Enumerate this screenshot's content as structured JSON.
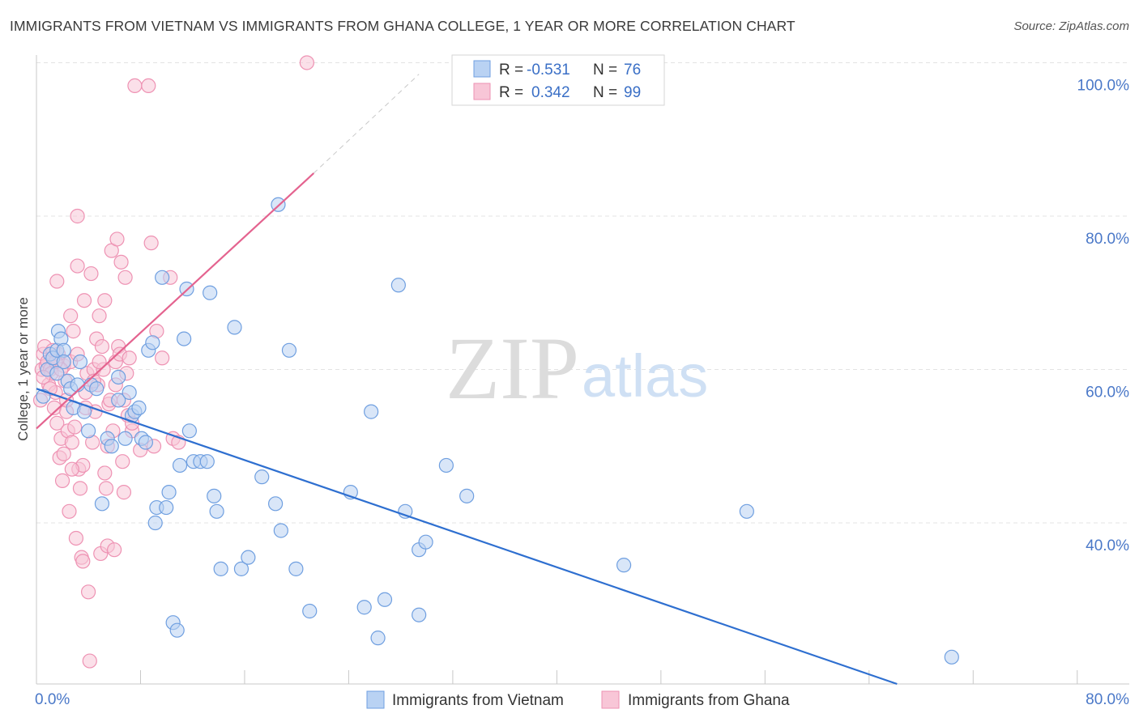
{
  "title": "IMMIGRANTS FROM VIETNAM VS IMMIGRANTS FROM GHANA COLLEGE, 1 YEAR OR MORE CORRELATION CHART",
  "source": "Source: ZipAtlas.com",
  "watermark": {
    "zip": "ZIP",
    "atlas": "atlas"
  },
  "legend": {
    "r_label": "R =",
    "n_label": "N =",
    "rows": [
      {
        "series": "Immigrants from Vietnam",
        "r": "-0.531",
        "n": "76"
      },
      {
        "series": "Immigrants from Ghana",
        "r": "0.342",
        "n": "99"
      }
    ]
  },
  "chart_data": {
    "type": "scatter",
    "title": "IMMIGRANTS FROM VIETNAM VS IMMIGRANTS FROM GHANA COLLEGE, 1 YEAR OR MORE CORRELATION CHART",
    "xlabel": "",
    "ylabel": "College, 1 year or more",
    "xlim": [
      0,
      80
    ],
    "ylim": [
      19,
      101
    ],
    "x_tick_labels": [
      "0.0%",
      "80.0%"
    ],
    "y_ticks": [
      {
        "value": 100,
        "label": "100.0%"
      },
      {
        "value": 80,
        "label": "80.0%"
      },
      {
        "value": 60,
        "label": "60.0%"
      },
      {
        "value": 40,
        "label": "40.0%"
      }
    ],
    "grid": true,
    "series": [
      {
        "name": "Immigrants from Vietnam",
        "color": "#6f9fe0",
        "fill": "#b9d2f3",
        "trend": {
          "x": [
            0,
            63
          ],
          "y": [
            57.5,
            19
          ],
          "color": "#2e6fd0"
        },
        "points": [
          [
            0.5,
            56.5
          ],
          [
            0.8,
            60.0
          ],
          [
            1.0,
            62.0
          ],
          [
            1.2,
            61.5
          ],
          [
            1.5,
            62.5
          ],
          [
            1.6,
            65.0
          ],
          [
            1.8,
            64.0
          ],
          [
            2.0,
            62.5
          ],
          [
            2.3,
            58.5
          ],
          [
            2.5,
            57.5
          ],
          [
            2.7,
            55.0
          ],
          [
            3.0,
            58.0
          ],
          [
            3.2,
            61.0
          ],
          [
            3.5,
            54.5
          ],
          [
            3.8,
            52.0
          ],
          [
            4.0,
            58.0
          ],
          [
            4.4,
            57.5
          ],
          [
            4.8,
            42.5
          ],
          [
            5.2,
            51.0
          ],
          [
            5.5,
            50.0
          ],
          [
            6.0,
            56.0
          ],
          [
            6.0,
            59.0
          ],
          [
            6.5,
            51.0
          ],
          [
            6.8,
            57.0
          ],
          [
            7.0,
            54.0
          ],
          [
            7.2,
            54.5
          ],
          [
            7.5,
            55.0
          ],
          [
            7.7,
            51.0
          ],
          [
            8.0,
            50.5
          ],
          [
            8.2,
            62.5
          ],
          [
            8.5,
            63.5
          ],
          [
            8.7,
            40.0
          ],
          [
            8.8,
            42.0
          ],
          [
            9.2,
            72.0
          ],
          [
            9.5,
            42.0
          ],
          [
            9.7,
            44.0
          ],
          [
            10.0,
            27.0
          ],
          [
            10.3,
            26.0
          ],
          [
            10.5,
            47.5
          ],
          [
            10.8,
            64.0
          ],
          [
            11.0,
            70.5
          ],
          [
            11.2,
            52.0
          ],
          [
            11.5,
            48.0
          ],
          [
            12.0,
            48.0
          ],
          [
            12.5,
            48.0
          ],
          [
            12.7,
            70.0
          ],
          [
            13.0,
            43.5
          ],
          [
            13.2,
            41.5
          ],
          [
            13.5,
            34.0
          ],
          [
            14.5,
            65.5
          ],
          [
            15.0,
            34.0
          ],
          [
            15.5,
            35.5
          ],
          [
            16.5,
            46.0
          ],
          [
            17.5,
            42.5
          ],
          [
            17.7,
            81.5
          ],
          [
            17.9,
            39.0
          ],
          [
            18.5,
            62.5
          ],
          [
            19.0,
            34.0
          ],
          [
            20.0,
            28.5
          ],
          [
            23.0,
            44.0
          ],
          [
            24.0,
            29.0
          ],
          [
            24.5,
            54.5
          ],
          [
            25.0,
            25.0
          ],
          [
            25.5,
            30.0
          ],
          [
            26.5,
            71.0
          ],
          [
            27.0,
            41.5
          ],
          [
            28.0,
            36.5
          ],
          [
            28.0,
            28.0
          ],
          [
            28.5,
            37.5
          ],
          [
            30.0,
            47.5
          ],
          [
            31.5,
            43.5
          ],
          [
            43.0,
            34.5
          ],
          [
            52.0,
            41.5
          ],
          [
            67.0,
            22.5
          ],
          [
            2.0,
            61.0
          ],
          [
            1.5,
            59.5
          ]
        ]
      },
      {
        "name": "Immigrants from Ghana",
        "color": "#ee92b3",
        "fill": "#f8c6d7",
        "trend": {
          "x": [
            0,
            20.3
          ],
          "y": [
            52.3,
            85.6
          ],
          "dashed_to": [
            28,
            98.5
          ],
          "color": "#e4638f"
        },
        "points": [
          [
            0.3,
            56.0
          ],
          [
            0.4,
            60.0
          ],
          [
            0.5,
            62.0
          ],
          [
            0.6,
            63.0
          ],
          [
            0.7,
            60.5
          ],
          [
            0.8,
            61.0
          ],
          [
            0.9,
            58.0
          ],
          [
            1.0,
            60.0
          ],
          [
            1.1,
            59.5
          ],
          [
            1.2,
            61.5
          ],
          [
            1.3,
            55.0
          ],
          [
            1.4,
            57.0
          ],
          [
            1.5,
            53.0
          ],
          [
            1.5,
            71.5
          ],
          [
            1.6,
            62.0
          ],
          [
            1.7,
            48.5
          ],
          [
            1.8,
            51.0
          ],
          [
            1.9,
            45.5
          ],
          [
            2.0,
            60.5
          ],
          [
            2.0,
            49.0
          ],
          [
            2.1,
            58.5
          ],
          [
            2.2,
            54.5
          ],
          [
            2.3,
            52.0
          ],
          [
            2.4,
            41.5
          ],
          [
            2.5,
            61.0
          ],
          [
            2.5,
            67.0
          ],
          [
            2.6,
            50.5
          ],
          [
            2.7,
            65.0
          ],
          [
            2.8,
            52.5
          ],
          [
            2.9,
            38.0
          ],
          [
            3.0,
            80.0
          ],
          [
            3.0,
            73.5
          ],
          [
            3.1,
            47.0
          ],
          [
            3.2,
            44.5
          ],
          [
            3.3,
            35.5
          ],
          [
            3.4,
            35.0
          ],
          [
            3.4,
            47.5
          ],
          [
            3.5,
            69.0
          ],
          [
            3.6,
            57.0
          ],
          [
            3.7,
            59.5
          ],
          [
            3.8,
            31.0
          ],
          [
            3.9,
            22.0
          ],
          [
            4.0,
            72.5
          ],
          [
            4.1,
            50.5
          ],
          [
            4.2,
            60.0
          ],
          [
            4.3,
            54.5
          ],
          [
            4.4,
            64.0
          ],
          [
            4.5,
            58.0
          ],
          [
            4.6,
            67.0
          ],
          [
            4.7,
            36.0
          ],
          [
            4.8,
            63.0
          ],
          [
            4.9,
            60.0
          ],
          [
            5.0,
            69.0
          ],
          [
            5.0,
            46.5
          ],
          [
            5.1,
            44.5
          ],
          [
            5.2,
            37.0
          ],
          [
            5.3,
            55.5
          ],
          [
            5.4,
            56.0
          ],
          [
            5.5,
            75.5
          ],
          [
            5.6,
            52.0
          ],
          [
            5.7,
            36.5
          ],
          [
            5.8,
            61.0
          ],
          [
            5.9,
            77.0
          ],
          [
            6.0,
            63.0
          ],
          [
            6.1,
            62.0
          ],
          [
            6.2,
            74.0
          ],
          [
            6.3,
            48.0
          ],
          [
            6.4,
            44.0
          ],
          [
            6.5,
            72.0
          ],
          [
            6.6,
            59.5
          ],
          [
            6.7,
            54.0
          ],
          [
            6.8,
            61.5
          ],
          [
            7.0,
            52.0
          ],
          [
            7.2,
            97.0
          ],
          [
            7.6,
            49.5
          ],
          [
            8.2,
            97.0
          ],
          [
            8.4,
            76.5
          ],
          [
            8.6,
            50.0
          ],
          [
            8.8,
            65.0
          ],
          [
            9.2,
            61.5
          ],
          [
            9.8,
            72.0
          ],
          [
            10.0,
            51.0
          ],
          [
            10.4,
            50.5
          ],
          [
            19.8,
            100.0
          ],
          [
            0.5,
            59.0
          ],
          [
            1.0,
            57.5
          ],
          [
            1.2,
            62.5
          ],
          [
            1.8,
            60.0
          ],
          [
            2.2,
            56.0
          ],
          [
            2.6,
            47.0
          ],
          [
            3.0,
            62.0
          ],
          [
            3.6,
            55.0
          ],
          [
            4.2,
            58.5
          ],
          [
            4.6,
            61.0
          ],
          [
            5.2,
            50.0
          ],
          [
            5.8,
            58.0
          ],
          [
            6.4,
            56.0
          ],
          [
            7.0,
            53.0
          ],
          [
            1.4,
            61.0
          ]
        ]
      }
    ]
  }
}
